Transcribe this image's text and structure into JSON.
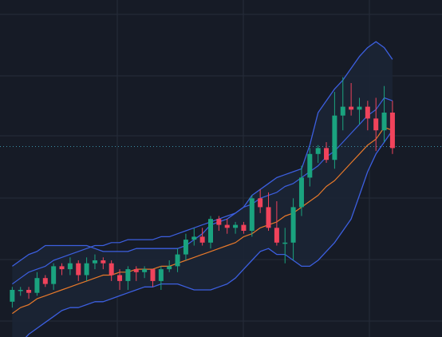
{
  "colors": {
    "background": "#161b26",
    "grid": "#262c3a",
    "up_candle": "#1aa37f",
    "down_candle": "#f0435b",
    "bollinger_band": "#3c5fe0",
    "bollinger_fill": "#1b2436",
    "moving_average": "#e8792a",
    "price_line": "#3a8fa6"
  },
  "chart_data": {
    "type": "candlestick",
    "indicators": [
      "bollinger-bands",
      "moving-average"
    ],
    "grid": true,
    "xlim": [
      0,
      100
    ],
    "ylim": [
      0,
      100
    ],
    "current_price_level": 58.5,
    "x": [
      2,
      4,
      6,
      8,
      10,
      12,
      14,
      16,
      18,
      20,
      22,
      24,
      26,
      28,
      30,
      32,
      34,
      36,
      38,
      40,
      42,
      44,
      46,
      48,
      50,
      52,
      54,
      56,
      58,
      60,
      62,
      64,
      66,
      68,
      70,
      72,
      74,
      76,
      78,
      80,
      82,
      84,
      86,
      88,
      90,
      92,
      94
    ],
    "candles": {
      "open": [
        6,
        10,
        10,
        9,
        14,
        12,
        18,
        17,
        19,
        15,
        19,
        20,
        19,
        15,
        13,
        17,
        16,
        17,
        13,
        17,
        18,
        22,
        27,
        28,
        26,
        34,
        32,
        31,
        32,
        30,
        41,
        38,
        31,
        26,
        26,
        38,
        48,
        56,
        58,
        54,
        69,
        72,
        71,
        72,
        68,
        64,
        70
      ],
      "close": [
        10,
        10,
        9,
        14,
        12,
        18,
        17,
        19,
        15,
        19,
        20,
        19,
        15,
        13,
        17,
        16,
        17,
        13,
        17,
        18,
        22,
        27,
        28,
        26,
        34,
        32,
        31,
        32,
        30,
        41,
        38,
        31,
        26,
        26,
        38,
        48,
        56,
        58,
        54,
        69,
        72,
        71,
        72,
        68,
        64,
        70,
        58
      ],
      "high": [
        11,
        11,
        11,
        16,
        15,
        19,
        19,
        21,
        20,
        21,
        22,
        21,
        20,
        17,
        18,
        18,
        18,
        17,
        18,
        20,
        24,
        29,
        31,
        31,
        35,
        35,
        34,
        33,
        33,
        42,
        44,
        43,
        40,
        31,
        41,
        52,
        58,
        59,
        60,
        77,
        82,
        80,
        75,
        74,
        75,
        79,
        74
      ],
      "low": [
        4,
        8,
        7,
        8,
        11,
        10,
        15,
        15,
        13,
        13,
        17,
        17,
        13,
        10,
        10,
        13,
        14,
        11,
        10,
        16,
        16,
        20,
        25,
        25,
        24,
        30,
        29,
        29,
        29,
        28,
        36,
        30,
        25,
        19,
        20,
        35,
        45,
        53,
        53,
        51,
        64,
        69,
        66,
        64,
        57,
        60,
        56
      ]
    },
    "bollinger": {
      "upper": [
        18,
        20,
        22,
        23,
        25,
        25,
        25,
        25,
        25,
        25,
        24,
        23,
        23,
        23,
        23,
        24,
        24,
        24,
        24,
        24,
        24,
        25,
        27,
        29,
        32,
        33,
        34,
        36,
        38,
        42,
        44,
        46,
        48,
        49,
        50,
        51,
        59,
        70,
        74,
        78,
        81,
        85,
        89,
        92,
        94,
        92,
        88
      ],
      "middle": [
        2,
        4,
        6,
        7,
        8,
        10,
        11,
        12,
        13,
        14,
        15,
        15,
        16,
        16,
        17,
        17,
        17,
        17,
        18,
        18,
        19,
        20,
        21,
        22,
        23,
        24,
        25,
        26,
        28,
        29,
        31,
        32,
        33,
        35,
        36,
        38,
        40,
        42,
        45,
        47,
        50,
        53,
        56,
        59,
        61,
        65,
        64
      ],
      "lower": [
        -10,
        -8,
        -5,
        -3,
        -1,
        1,
        3,
        4,
        4,
        5,
        6,
        6,
        7,
        8,
        9,
        10,
        11,
        11,
        12,
        12,
        12,
        11,
        10,
        10,
        10,
        11,
        12,
        14,
        17,
        20,
        23,
        24,
        22,
        22,
        20,
        18,
        18,
        20,
        23,
        26,
        30,
        34,
        42,
        50,
        56,
        60,
        64
      ]
    },
    "moving_average": [
      2,
      4,
      5,
      7,
      8,
      9,
      10,
      11,
      12,
      13,
      14,
      15,
      15,
      16,
      16,
      17,
      17,
      17,
      18,
      18,
      19,
      20,
      21,
      22,
      23,
      24,
      25,
      26,
      28,
      29,
      31,
      32,
      33,
      35,
      36,
      38,
      40,
      42,
      45,
      47,
      50,
      53,
      56,
      59,
      61,
      65,
      64
    ]
  }
}
